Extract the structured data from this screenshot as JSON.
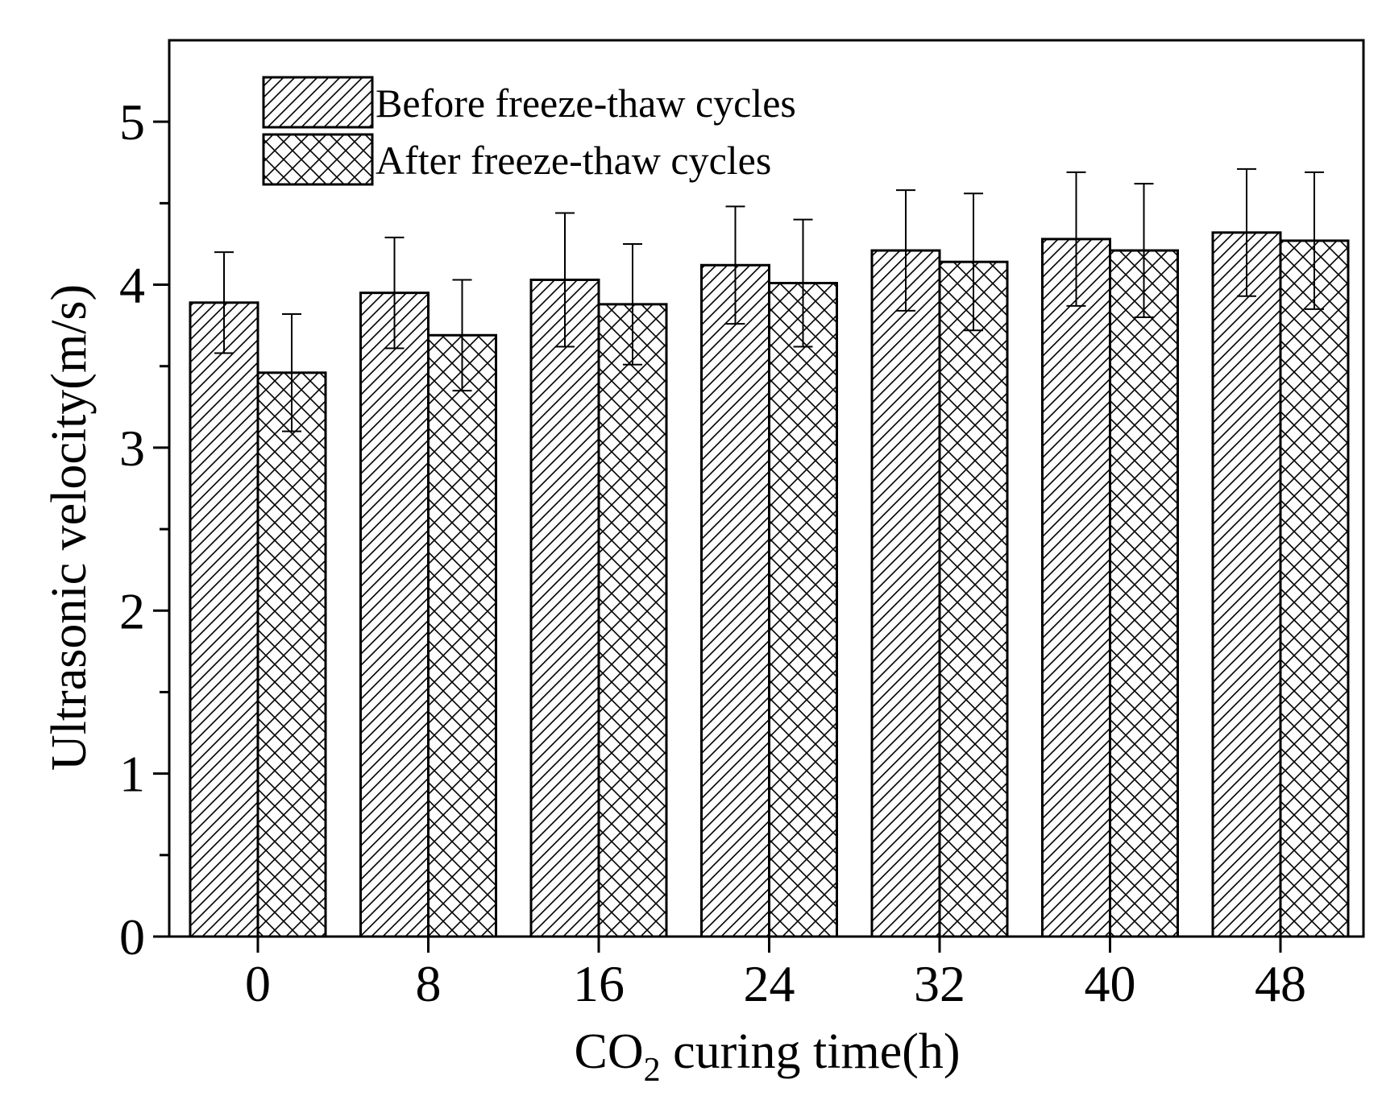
{
  "chart_data": {
    "type": "bar",
    "categories": [
      "0",
      "8",
      "16",
      "24",
      "32",
      "40",
      "48"
    ],
    "series": [
      {
        "name": "Before freeze-thaw cycles",
        "pattern": "diagonal-hatch",
        "values": [
          3.89,
          3.95,
          4.03,
          4.12,
          4.21,
          4.28,
          4.32
        ],
        "errors": [
          0.31,
          0.34,
          0.41,
          0.36,
          0.37,
          0.41,
          0.39
        ]
      },
      {
        "name": "After freeze-thaw cycles",
        "pattern": "cross-hatch",
        "values": [
          3.46,
          3.69,
          3.88,
          4.01,
          4.14,
          4.21,
          4.27
        ],
        "errors": [
          0.36,
          0.34,
          0.37,
          0.39,
          0.42,
          0.41,
          0.42
        ]
      }
    ],
    "xlabel_main": "CO",
    "xlabel_sub": "2",
    "xlabel_rest": " curing time(h)",
    "ylabel": "Ultrasonic velocity(m/s)",
    "ylim": [
      0,
      5.5
    ],
    "yticks": [
      "0",
      "1",
      "2",
      "3",
      "4",
      "5"
    ],
    "legend_position": "top-left",
    "grid": false
  },
  "colors": {
    "stroke": "#000000",
    "background": "#ffffff"
  }
}
